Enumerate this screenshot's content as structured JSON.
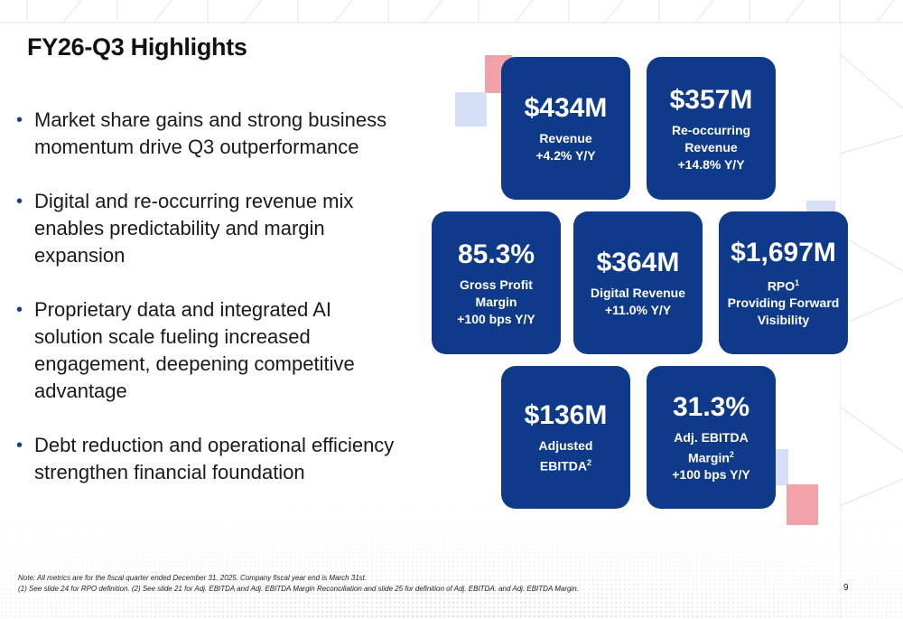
{
  "slide": {
    "title": "FY26-Q3 Highlights",
    "page_number": "9"
  },
  "bullets": [
    "Market share gains and strong business momentum drive Q3 outperformance",
    "Digital and re-occurring revenue mix enables predictability and margin expansion",
    "Proprietary data and integrated AI solution scale fueling increased engagement, deepening competitive advantage",
    "Debt reduction and operational efficiency strengthen financial foundation"
  ],
  "bullet_symbol": "•",
  "tiles": {
    "revenue": {
      "value": "$434M",
      "label_1": "Revenue",
      "label_2": "+4.2% Y/Y"
    },
    "reoccurring": {
      "value": "$357M",
      "label_1": "Re-occurring",
      "label_2": "Revenue",
      "label_3": "+14.8% Y/Y"
    },
    "gross_margin": {
      "value": "85.3%",
      "label_1": "Gross Profit",
      "label_2": "Margin",
      "label_3": "+100 bps Y/Y"
    },
    "digital": {
      "value": "$364M",
      "label_1": "Digital Revenue",
      "label_2": "+11.0% Y/Y"
    },
    "rpo": {
      "value": "$1,697M",
      "label_1": "RPO",
      "label_1_sup": "1",
      "label_2": "Providing Forward",
      "label_3": "Visibility"
    },
    "ebitda": {
      "value": "$136M",
      "label_1": "Adjusted",
      "label_2": "EBITDA",
      "label_2_sup": "2"
    },
    "ebitda_margin": {
      "value": "31.3%",
      "label_1": "Adj. EBITDA",
      "label_2": "Margin",
      "label_2_sup": "2",
      "label_3": "+100 bps Y/Y"
    }
  },
  "notes": {
    "line_1": "Note: All metrics are for the fiscal quarter ended December 31, 2025. Company fiscal year end is March 31st.",
    "line_2": "(1) See slide 24 for RPO definition. (2) See slide 21 for Adj. EBITDA and Adj. EBITDA Margin Reconciliation and slide 25 for definition of Adj. EBITDA. and Adj. EBITDA Margin."
  },
  "colors": {
    "tile": "#0f3a8a",
    "accent_pink": "#f0a2a8",
    "accent_light_blue": "#d5e0f7"
  }
}
